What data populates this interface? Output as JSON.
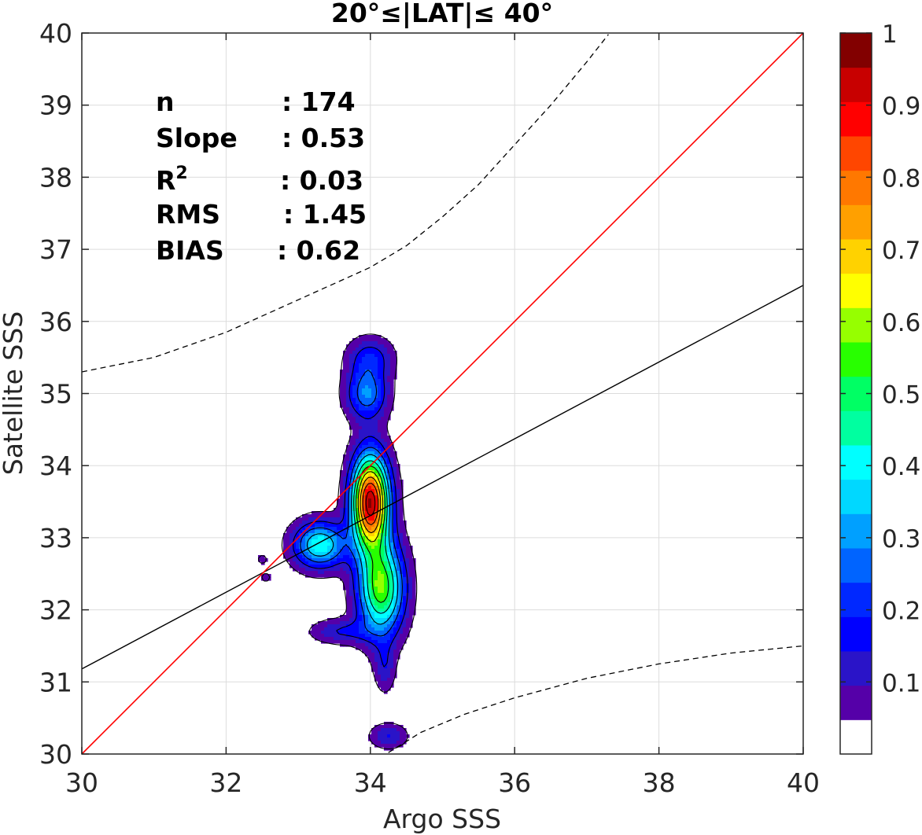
{
  "chart_data": {
    "type": "contour",
    "title": "20°≤|LAT|≤ 40°",
    "xlabel": "Argo SSS",
    "ylabel": "Satellite SSS",
    "xlim": [
      30,
      40
    ],
    "ylim": [
      30,
      40
    ],
    "xticks": [
      "30",
      "32",
      "34",
      "36",
      "38",
      "40"
    ],
    "yticks": [
      "30",
      "31",
      "32",
      "33",
      "34",
      "35",
      "36",
      "37",
      "38",
      "39",
      "40"
    ],
    "grid": true,
    "stats": [
      {
        "label": "n",
        "value": ": 174"
      },
      {
        "label": "Slope",
        "value": ": 0.53"
      },
      {
        "label": "R",
        "sup": "2",
        "value": ": 0.03"
      },
      {
        "label": "RMS",
        "value": ": 1.45"
      },
      {
        "label": "BIAS",
        "value": ": 0.62"
      }
    ],
    "one_to_one_line": {
      "x": [
        30,
        40
      ],
      "y": [
        30,
        40
      ],
      "color": "#ff0000"
    },
    "regression_line": {
      "x": [
        30,
        40
      ],
      "y": [
        31.18,
        36.5
      ],
      "color": "#000000"
    },
    "confidence_upper": {
      "x": [
        30,
        31,
        32,
        33,
        34,
        34.5,
        35,
        35.5,
        36,
        36.5,
        37,
        37.3
      ],
      "y": [
        35.3,
        35.5,
        35.85,
        36.3,
        36.75,
        37.05,
        37.45,
        37.9,
        38.45,
        39.0,
        39.6,
        39.98
      ]
    },
    "confidence_lower": {
      "x": [
        34.25,
        34.7,
        35.3,
        36,
        37,
        38,
        39,
        40
      ],
      "y": [
        30.02,
        30.3,
        30.55,
        30.78,
        31.05,
        31.25,
        31.4,
        31.5
      ]
    },
    "colorbar": {
      "ticks": [
        "0.1",
        "0.2",
        "0.3",
        "0.4",
        "0.5",
        "0.6",
        "0.7",
        "0.8",
        "0.9",
        "1"
      ],
      "levels": [
        0,
        0.05,
        0.1,
        0.15,
        0.2,
        0.25,
        0.3,
        0.35,
        0.4,
        0.45,
        0.5,
        0.55,
        0.6,
        0.65,
        0.7,
        0.75,
        0.8,
        0.85,
        0.9,
        0.95,
        1
      ],
      "colors": [
        "#ffffff",
        "#5500a8",
        "#2a14c8",
        "#0000ff",
        "#0028ff",
        "#0064ff",
        "#00a0ff",
        "#00d8ff",
        "#00ffff",
        "#00ffa0",
        "#00ff64",
        "#28ff00",
        "#96ff00",
        "#ffff00",
        "#ffd200",
        "#ffa000",
        "#ff7800",
        "#ff4600",
        "#ff0000",
        "#c80000",
        "#820000"
      ]
    },
    "density_peaks": [
      {
        "x": 34.0,
        "y": 33.5,
        "value": 1.0,
        "sx": 0.18,
        "sy": 0.45
      },
      {
        "x": 34.15,
        "y": 32.3,
        "value": 0.6,
        "sx": 0.22,
        "sy": 0.45
      },
      {
        "x": 33.3,
        "y": 32.9,
        "value": 0.45,
        "sx": 0.25,
        "sy": 0.22
      },
      {
        "x": 33.95,
        "y": 35.0,
        "value": 0.3,
        "sx": 0.2,
        "sy": 0.25
      },
      {
        "x": 34.0,
        "y": 35.5,
        "value": 0.18,
        "sx": 0.22,
        "sy": 0.2
      },
      {
        "x": 34.25,
        "y": 30.25,
        "value": 0.15,
        "sx": 0.18,
        "sy": 0.12
      },
      {
        "x": 34.2,
        "y": 31.2,
        "value": 0.12,
        "sx": 0.1,
        "sy": 0.25
      },
      {
        "x": 33.6,
        "y": 31.7,
        "value": 0.15,
        "sx": 0.3,
        "sy": 0.12
      },
      {
        "x": 32.5,
        "y": 32.7,
        "value": 0.09,
        "sx": 0.05,
        "sy": 0.05
      },
      {
        "x": 32.55,
        "y": 32.45,
        "value": 0.09,
        "sx": 0.05,
        "sy": 0.05
      }
    ]
  }
}
